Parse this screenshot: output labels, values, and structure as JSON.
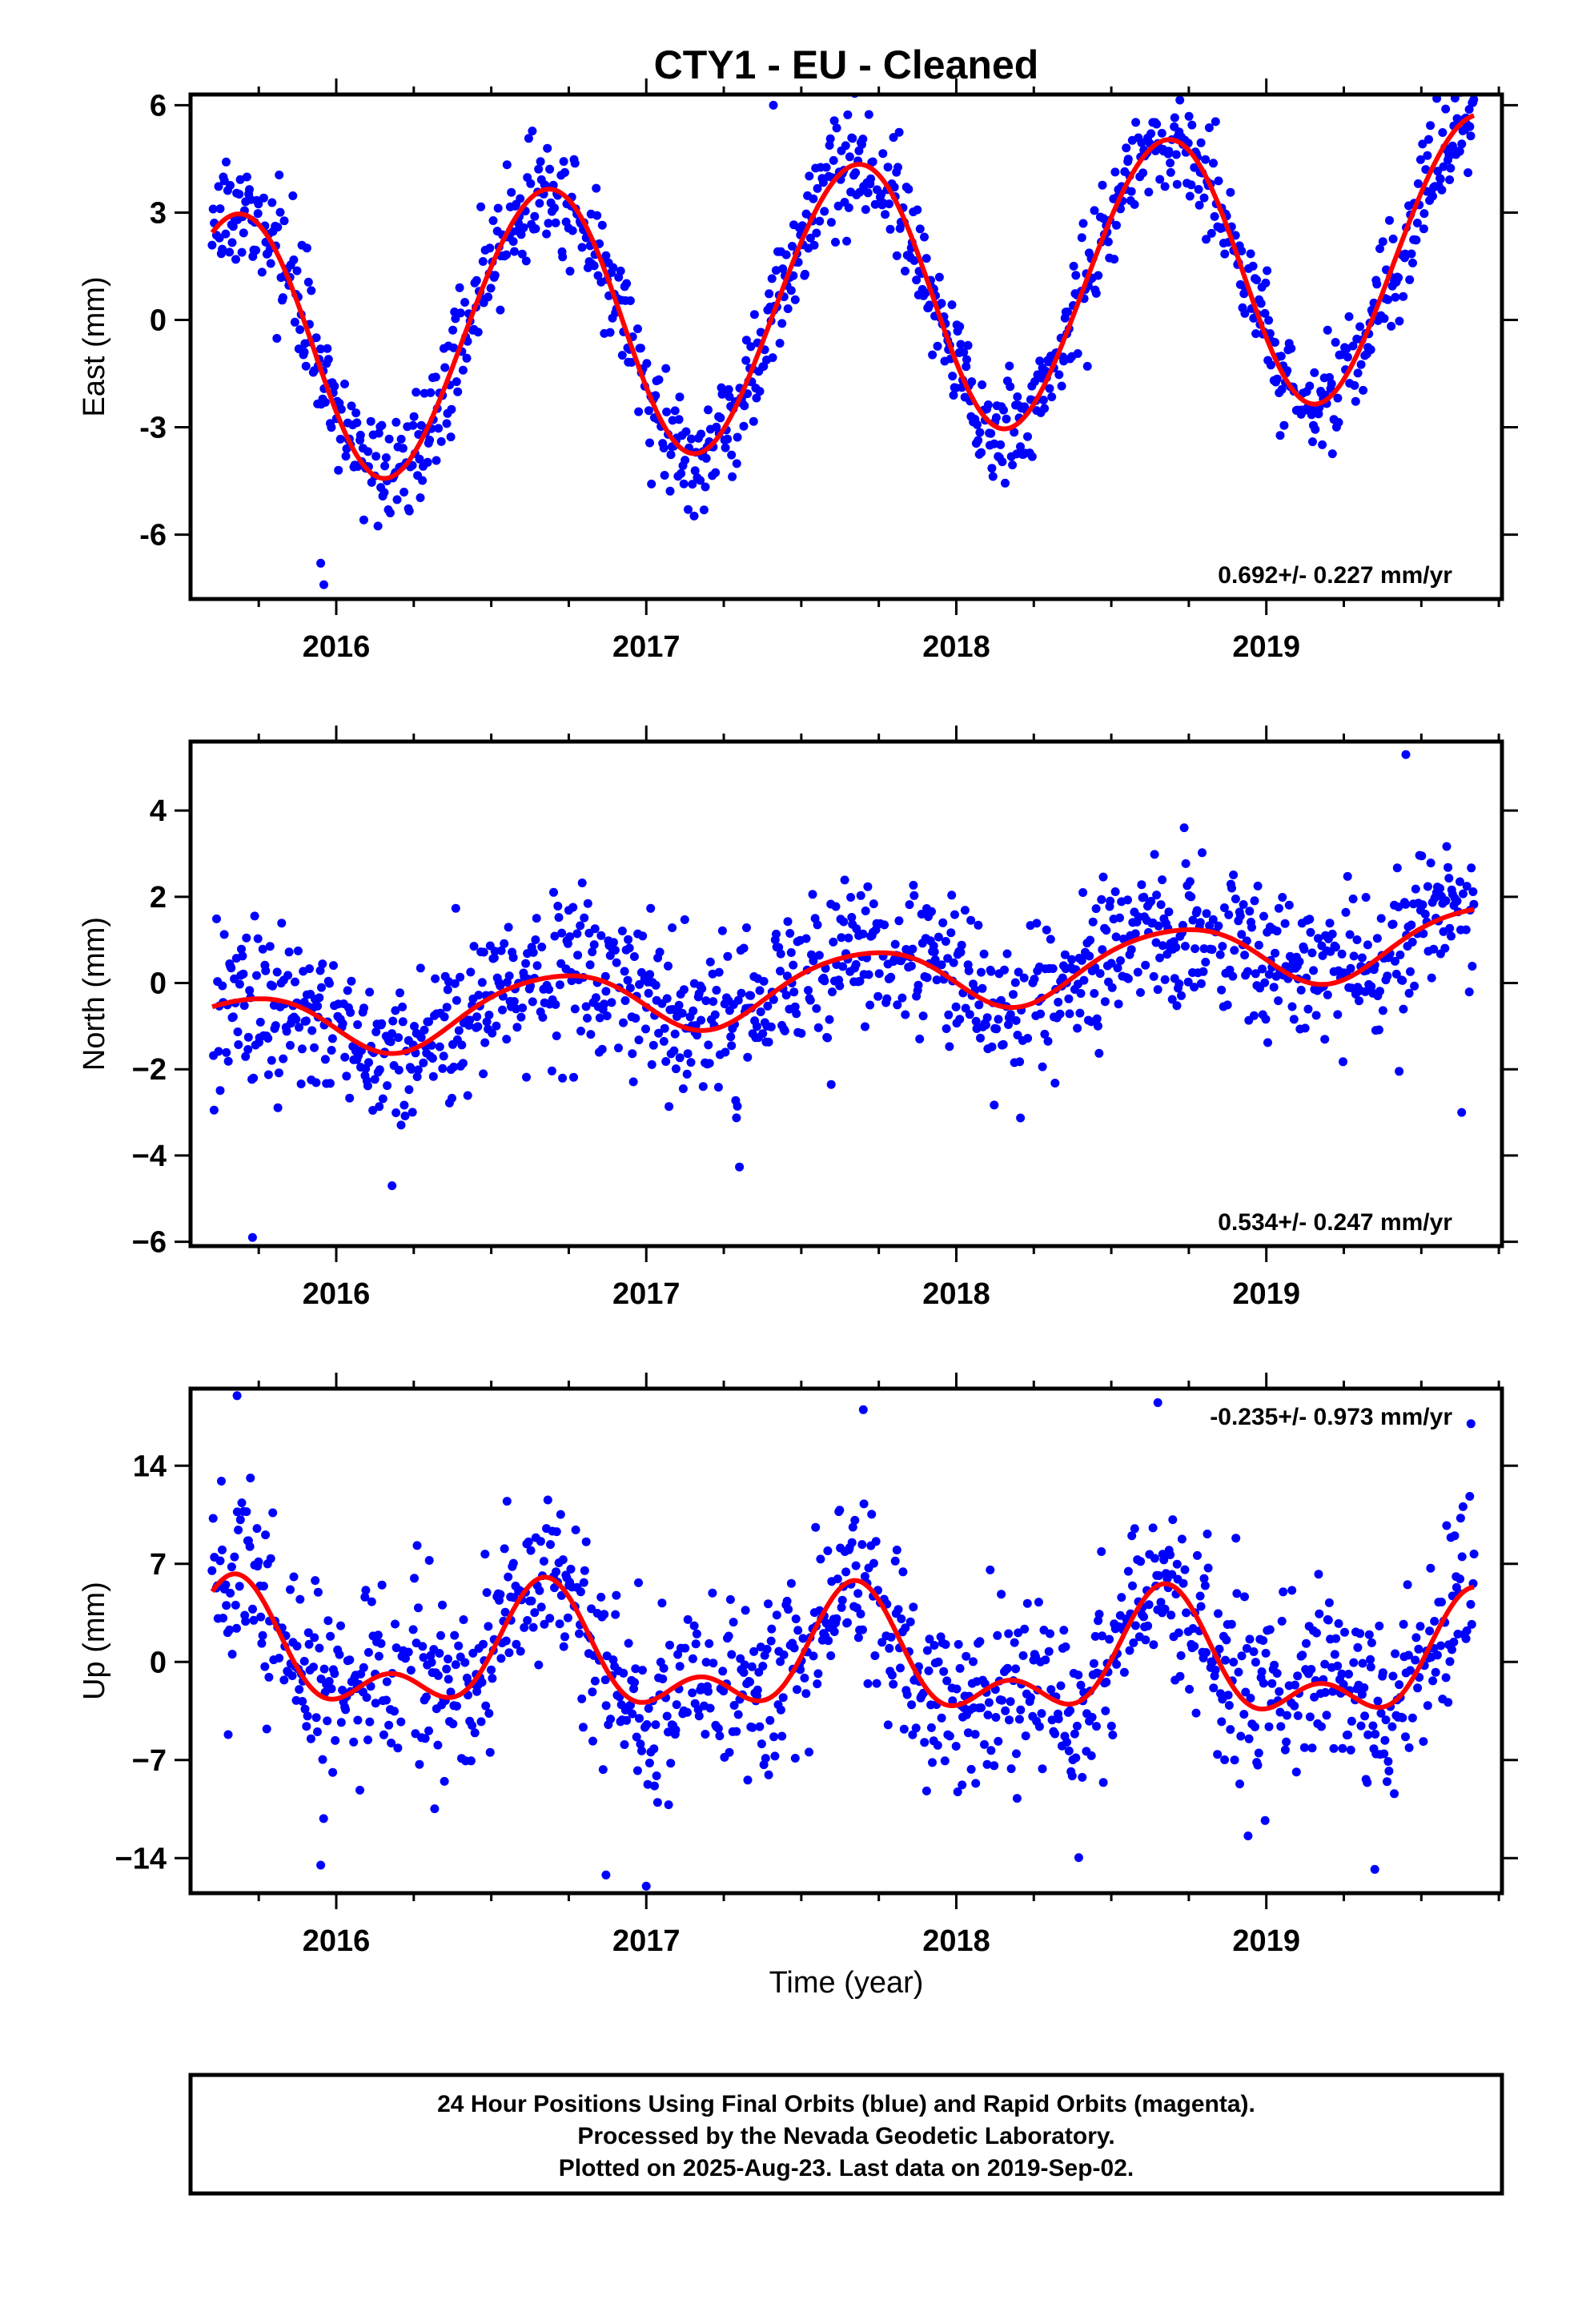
{
  "title": "CTY1  - EU - Cleaned",
  "xlabel": "Time (year)",
  "colors": {
    "final_orbits": "#0000ff",
    "rapid_orbits": "#ff00ff",
    "model": "#ff0000",
    "frame": "#000000"
  },
  "footer": {
    "lines": [
      "24 Hour Positions Using Final Orbits (blue) and Rapid Orbits (magenta).",
      "Processed by the Nevada Geodetic Laboratory.",
      "Plotted on 2025-Aug-23. Last data on 2019-Sep-02."
    ]
  },
  "chart_data": [
    {
      "type": "scatter",
      "ylabel": "East (mm)",
      "rate": "0.692+/- 0.227 mm/yr",
      "xlim": [
        2015.53,
        2019.76
      ],
      "ylim": [
        -7.8,
        6.3
      ],
      "x_ticks": [
        2016,
        2017,
        2018,
        2019
      ],
      "y_ticks": [
        -6,
        -3,
        0,
        3,
        6
      ],
      "y_tick_labels": [
        "-6",
        "-3",
        "0",
        "3",
        "6"
      ],
      "grid": false,
      "data_span": [
        2015.6,
        2019.67
      ],
      "model": {
        "offset": -0.9,
        "slope": 0.692,
        "t0": 2015.6,
        "annual_amp": 3.85,
        "annual_phase": 2015.42,
        "semiannual_amp": 0.15,
        "semiannual_phase": 2015.2,
        "scatter_sd": 0.8
      },
      "outliers": [
        [
          2015.96,
          -7.4
        ],
        [
          2017.41,
          6.0
        ],
        [
          2015.95,
          -6.8
        ]
      ]
    },
    {
      "type": "scatter",
      "ylabel": "North (mm)",
      "rate": "0.534+/- 0.247 mm/yr",
      "xlim": [
        2015.53,
        2019.76
      ],
      "ylim": [
        -6.1,
        5.6
      ],
      "x_ticks": [
        2016,
        2017,
        2018,
        2019
      ],
      "y_ticks": [
        -6,
        -4,
        -2,
        0,
        2,
        4
      ],
      "y_tick_labels": [
        "−6",
        "−4",
        "−2",
        "0",
        "2",
        "4"
      ],
      "grid": false,
      "data_span": [
        2015.6,
        2019.67
      ],
      "model": {
        "offset": -1.1,
        "slope": 0.534,
        "t0": 2015.6,
        "annual_amp": 0.75,
        "annual_phase": 2015.45,
        "semiannual_amp": 0.1,
        "semiannual_phase": 2015.3,
        "scatter_sd": 0.9
      },
      "outliers": [
        [
          2015.73,
          -5.9
        ],
        [
          2016.18,
          -4.7
        ],
        [
          2019.45,
          5.3
        ],
        [
          2019.63,
          -3.0
        ]
      ]
    },
    {
      "type": "scatter",
      "ylabel": "Up (mm)",
      "rate": "-0.235+/- 0.973 mm/yr",
      "xlim": [
        2015.53,
        2019.76
      ],
      "ylim": [
        -16.5,
        19.5
      ],
      "x_ticks": [
        2016,
        2017,
        2018,
        2019
      ],
      "y_ticks": [
        -14,
        -7,
        0,
        7,
        14
      ],
      "y_tick_labels": [
        "−14",
        "−7",
        "0",
        "7",
        "14"
      ],
      "grid": false,
      "data_span": [
        2015.6,
        2019.67
      ],
      "model": {
        "offset": 0.5,
        "slope": -0.235,
        "t0": 2015.6,
        "annual_amp": 3.5,
        "annual_phase": 2015.42,
        "semiannual_amp": 2.3,
        "semiannual_phase": 2015.55,
        "scatter_sd": 3.2
      },
      "outliers": [
        [
          2015.68,
          19.0
        ],
        [
          2017.7,
          18.0
        ],
        [
          2018.65,
          18.5
        ],
        [
          2019.66,
          17.0
        ],
        [
          2017.0,
          -16.0
        ],
        [
          2016.87,
          -15.2
        ],
        [
          2015.95,
          -14.5
        ],
        [
          2019.35,
          -14.8
        ]
      ]
    }
  ]
}
